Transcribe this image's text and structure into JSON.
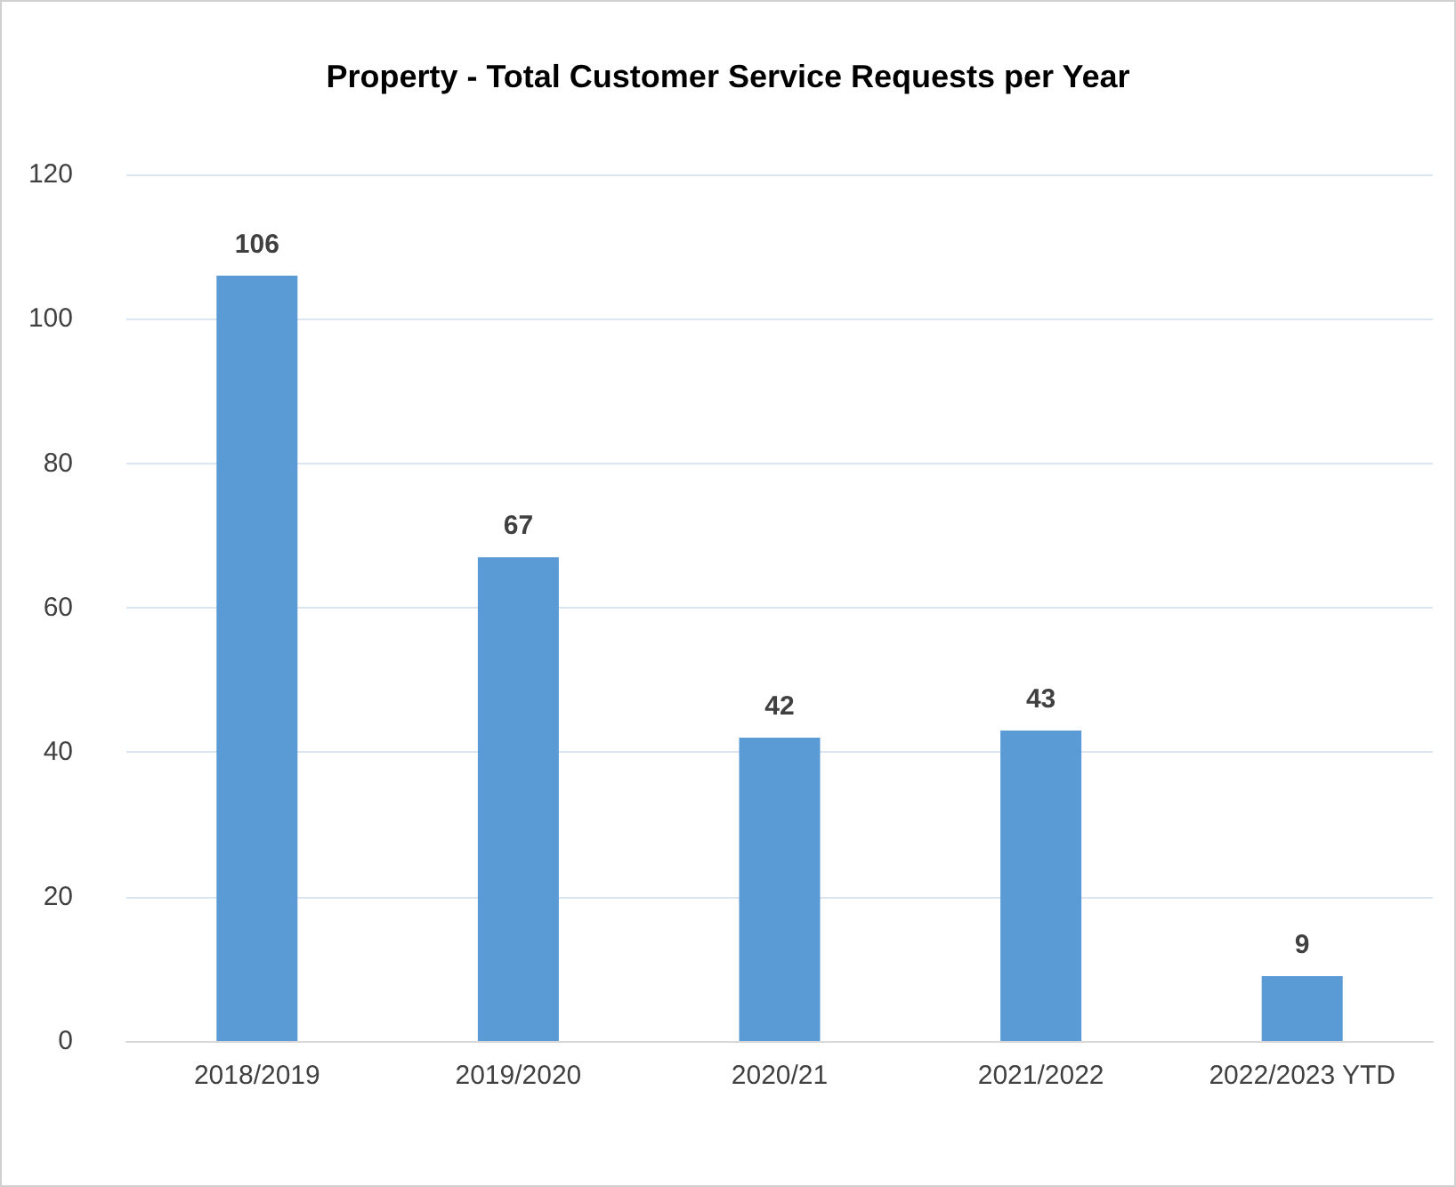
{
  "chart_data": {
    "type": "bar",
    "title": "Property - Total Customer Service Requests per Year",
    "categories": [
      "2018/2019",
      "2019/2020",
      "2020/21",
      "2021/2022",
      "2022/2023 YTD"
    ],
    "values": [
      106,
      67,
      42,
      43,
      9
    ],
    "color": "#5b9bd5",
    "ylim": [
      0,
      120
    ],
    "yticks": [
      0,
      20,
      40,
      60,
      80,
      100,
      120
    ],
    "grid": "y",
    "data_labels": true
  }
}
